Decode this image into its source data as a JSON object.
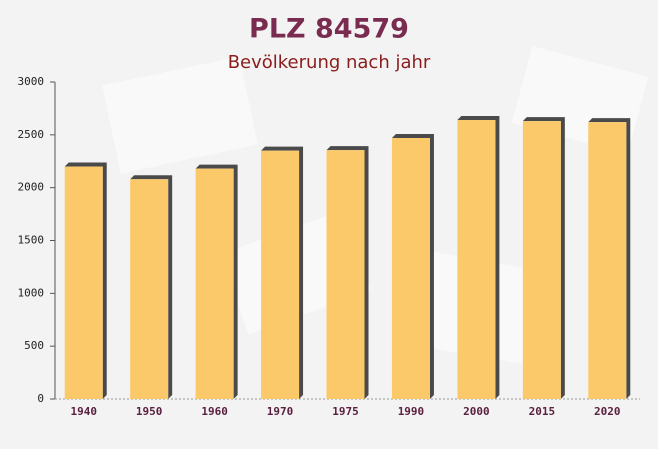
{
  "chart_data": {
    "type": "bar",
    "title": "PLZ 84579",
    "subtitle": "Bevölkerung nach jahr",
    "categories": [
      "1940",
      "1950",
      "1960",
      "1970",
      "1975",
      "1990",
      "2000",
      "2015",
      "2020"
    ],
    "values": [
      2200,
      2080,
      2180,
      2350,
      2355,
      2470,
      2640,
      2630,
      2620
    ],
    "color": "#fbc96a",
    "ylim": [
      0,
      3000
    ],
    "yticks": [
      0,
      500,
      1000,
      1500,
      2000,
      2500,
      3000
    ],
    "grid": false
  }
}
